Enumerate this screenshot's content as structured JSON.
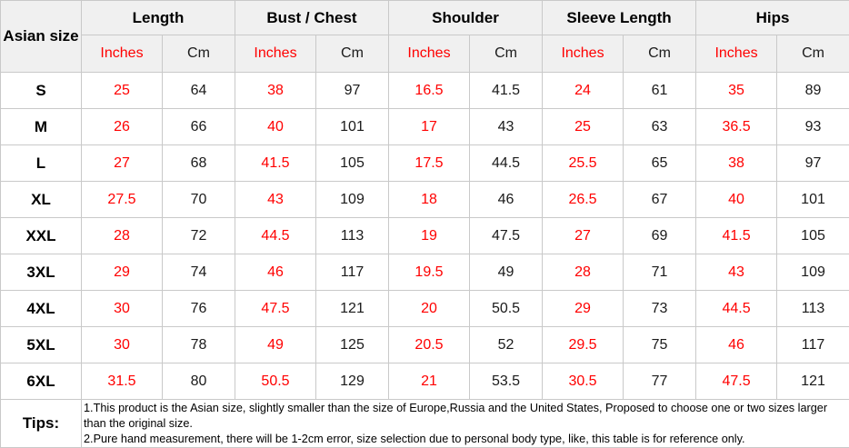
{
  "chart_data": {
    "type": "table",
    "corner_header": "Asian size",
    "group_headers": [
      {
        "label": "Length"
      },
      {
        "label": "Bust / Chest"
      },
      {
        "label": "Shoulder"
      },
      {
        "label": "Sleeve Length"
      },
      {
        "label": "Hips"
      }
    ],
    "unit_labels": {
      "inches": "Inches",
      "cm": "Cm"
    },
    "rows": [
      {
        "size": "S",
        "values": [
          "25",
          "64",
          "38",
          "97",
          "16.5",
          "41.5",
          "24",
          "61",
          "35",
          "89"
        ]
      },
      {
        "size": "M",
        "values": [
          "26",
          "66",
          "40",
          "101",
          "17",
          "43",
          "25",
          "63",
          "36.5",
          "93"
        ]
      },
      {
        "size": "L",
        "values": [
          "27",
          "68",
          "41.5",
          "105",
          "17.5",
          "44.5",
          "25.5",
          "65",
          "38",
          "97"
        ]
      },
      {
        "size": "XL",
        "values": [
          "27.5",
          "70",
          "43",
          "109",
          "18",
          "46",
          "26.5",
          "67",
          "40",
          "101"
        ]
      },
      {
        "size": "XXL",
        "values": [
          "28",
          "72",
          "44.5",
          "113",
          "19",
          "47.5",
          "27",
          "69",
          "41.5",
          "105"
        ]
      },
      {
        "size": "3XL",
        "values": [
          "29",
          "74",
          "46",
          "117",
          "19.5",
          "49",
          "28",
          "71",
          "43",
          "109"
        ]
      },
      {
        "size": "4XL",
        "values": [
          "30",
          "76",
          "47.5",
          "121",
          "20",
          "50.5",
          "29",
          "73",
          "44.5",
          "113"
        ]
      },
      {
        "size": "5XL",
        "values": [
          "30",
          "78",
          "49",
          "125",
          "20.5",
          "52",
          "29.5",
          "75",
          "46",
          "117"
        ]
      },
      {
        "size": "6XL",
        "values": [
          "31.5",
          "80",
          "50.5",
          "129",
          "21",
          "53.5",
          "30.5",
          "77",
          "47.5",
          "121"
        ]
      }
    ],
    "tips_label": "Tips:",
    "tips_notes": [
      "1.This product is the Asian size, slightly smaller than the size of Europe,Russia and the United States, Proposed to choose one or two sizes larger than the original size.",
      "2.Pure hand measurement, there will be 1-2cm error, size selection due to personal body type, like, this table is for reference only."
    ],
    "colors": {
      "inches_text": "#ff0000",
      "value_text": "#1a1a1a",
      "header_bg": "#f0f0f0",
      "border": "#c9c9c9"
    }
  }
}
